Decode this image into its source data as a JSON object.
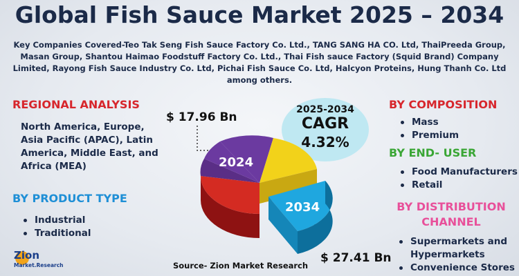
{
  "title": "Global Fish Sauce Market 2025 – 2034",
  "key_companies": "Key Companies Covered-Teo Tak Seng Fish Sauce Factory Co. Ltd., TANG SANG HA CO. Ltd, ThaiPreeda Group, Masan Group, Shantou Haimao Foodstuff Factory Co. Ltd., Thai Fish sauce Factory (Squid Brand) Company Limited, Rayong Fish Sauce Industry Co. Ltd, Pichai Fish Sauce Co. Ltd, Halcyon Proteins, Hung Thanh Co. Ltd among others.",
  "regional_analysis": {
    "heading": "REGIONAL ANALYSIS",
    "text": "North America, Europe, Asia Pacific (APAC), Latin America, Middle East, and Africa (MEA)"
  },
  "product_type": {
    "heading": "BY PRODUCT TYPE",
    "items": [
      "Industrial",
      "Traditional"
    ]
  },
  "cagr": {
    "period": "2025-2034",
    "label": "CAGR",
    "value": "4.32%"
  },
  "market_2024": {
    "year": "2024",
    "value": "$ 17.96 Bn"
  },
  "market_2034": {
    "year": "2034",
    "value": "$ 27.41 Bn"
  },
  "composition": {
    "heading": "BY  COMPOSITION",
    "items": [
      "Mass",
      "Premium"
    ]
  },
  "end_user": {
    "heading": "BY END- USER",
    "items": [
      "Food Manufacturers",
      "Retail"
    ]
  },
  "distribution_channel": {
    "heading": "BY DISTRIBUTION CHANNEL",
    "items": [
      "Supermarkets and Hypermarkets",
      "Convenience Stores"
    ]
  },
  "source": "Source- Zion Market Research",
  "logo": {
    "name": "Zion",
    "subtitle": "Market.Research"
  }
}
